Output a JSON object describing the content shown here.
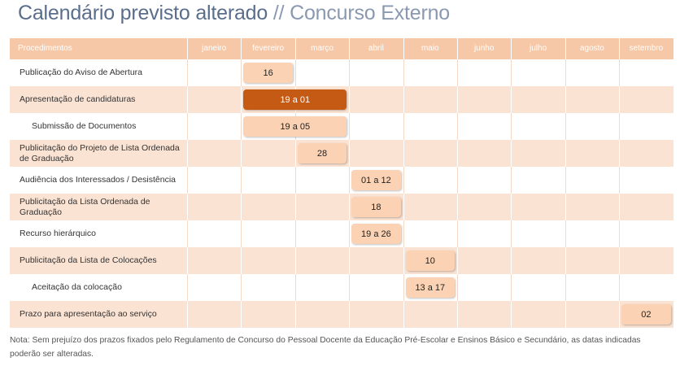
{
  "title": {
    "main": "Calendário previsto alterado",
    "separator": "//",
    "sub": "Concurso Externo"
  },
  "table": {
    "first_header": "Procedimentos",
    "months": [
      "janeiro",
      "fevereiro",
      "março",
      "abril",
      "maio",
      "junho",
      "julho",
      "agosto",
      "setembro"
    ],
    "rows": [
      {
        "label": "Publicação do Aviso de Abertura",
        "indent": false,
        "bar": "16",
        "start": 1,
        "span": 1,
        "dark": false
      },
      {
        "label": "Apresentação de candidaturas",
        "indent": false,
        "bar": "19 a 01",
        "start": 1,
        "span": 2,
        "dark": true
      },
      {
        "label": "Submissão de Documentos",
        "indent": true,
        "bar": "19 a 05",
        "start": 1,
        "span": 2,
        "dark": false
      },
      {
        "label": "Publicitação do Projeto de Lista Ordenada de Graduação",
        "indent": false,
        "bar": "28",
        "start": 2,
        "span": 1,
        "dark": false
      },
      {
        "label": "Audiência dos Interessados / Desistência",
        "indent": false,
        "bar": "01 a 12",
        "start": 3,
        "span": 1,
        "dark": false
      },
      {
        "label": "Publicitação da Lista Ordenada de Graduação",
        "indent": false,
        "bar": "18",
        "start": 3,
        "span": 1,
        "dark": false
      },
      {
        "label": "Recurso hierárquico",
        "indent": false,
        "bar": "19 a 26",
        "start": 3,
        "span": 1,
        "dark": false
      },
      {
        "label": "Publicitação da Lista de Colocações",
        "indent": false,
        "bar": "10",
        "start": 4,
        "span": 1,
        "dark": false
      },
      {
        "label": "Aceitação da colocação",
        "indent": true,
        "bar": "13 a 17",
        "start": 4,
        "span": 1,
        "dark": false
      },
      {
        "label": "Prazo para apresentação ao serviço",
        "indent": false,
        "bar": "02",
        "start": 8,
        "span": 1,
        "dark": false
      }
    ]
  },
  "note": "Nota: Sem prejuízo dos prazos fixados pelo Regulamento de Concurso do Pessoal Docente da Educação Pré-Escolar e Ensinos Básico e Secundário, as datas indicadas poderão ser alteradas.",
  "colors": {
    "header": "#f6c8a7",
    "stripe": "#fbe3d3",
    "bar": "#fbd3b4",
    "bar_dark": "#c55a14",
    "title": "#5a6e8c"
  }
}
